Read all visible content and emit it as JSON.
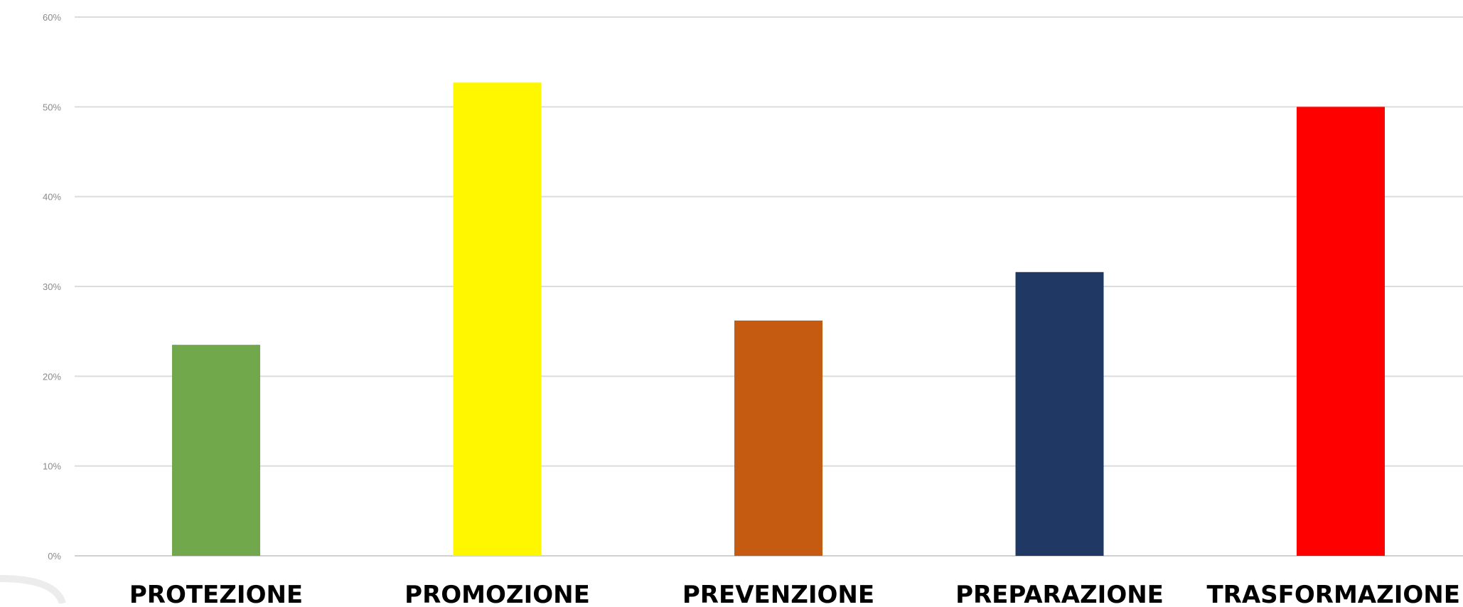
{
  "chart_data": {
    "type": "bar",
    "categories": [
      "PROTEZIONE",
      "PROMOZIONE",
      "PREVENZIONE",
      "PREPARAZIONE",
      "TRASFORMAZIONE"
    ],
    "values": [
      23.5,
      52.7,
      26.2,
      31.6,
      50.0
    ],
    "colors": [
      "#70a84b",
      "#fff700",
      "#c55a11",
      "#1f3864",
      "#ff0000"
    ],
    "y_ticks": [
      0,
      10,
      20,
      30,
      40,
      50,
      60
    ],
    "y_tick_labels": [
      "0%",
      "10%",
      "20%",
      "30%",
      "40%",
      "50%",
      "60%"
    ],
    "ylim": [
      0,
      60
    ],
    "y_unit": "%",
    "grid": true,
    "legend": "none"
  }
}
